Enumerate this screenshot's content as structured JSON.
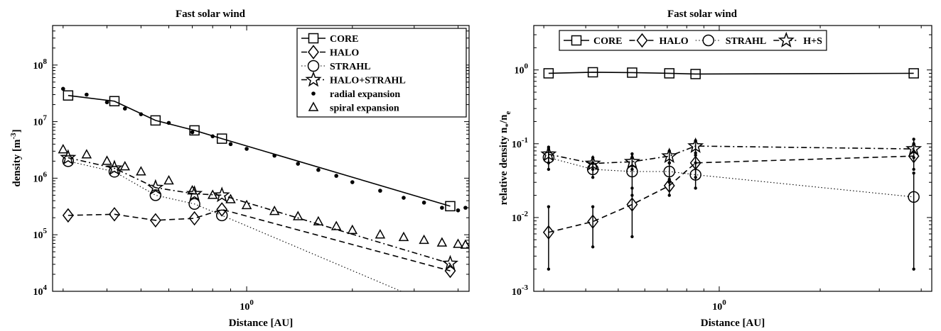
{
  "chart_data": [
    {
      "type": "line",
      "title": "Fast solar wind",
      "xlabel": "Distance [AU]",
      "ylabel_main": "density [m",
      "ylabel_sup": "-3",
      "ylabel_end": "]",
      "x_scale": "log",
      "y_scale": "log",
      "xlim": [
        0.28,
        4.3
      ],
      "ylim": [
        10000,
        500000000
      ],
      "x_tick_labels": [
        {
          "value": 1,
          "base": "10",
          "exp": "0"
        }
      ],
      "y_tick_labels": [
        {
          "value": 10000,
          "base": "10",
          "exp": "4"
        },
        {
          "value": 100000,
          "base": "10",
          "exp": "5"
        },
        {
          "value": 1000000,
          "base": "10",
          "exp": "6"
        },
        {
          "value": 10000000,
          "base": "10",
          "exp": "7"
        },
        {
          "value": 100000000,
          "base": "10",
          "exp": "8"
        }
      ],
      "legend_position": "top-right",
      "series": [
        {
          "name": "CORE",
          "style": "solid",
          "marker": "square",
          "x": [
            0.31,
            0.42,
            0.55,
            0.71,
            0.85,
            3.8
          ],
          "y": [
            29000000,
            23000000,
            10500000,
            7000000,
            5000000,
            320000
          ]
        },
        {
          "name": "HALO",
          "style": "dashed",
          "marker": "diamond",
          "x": [
            0.31,
            0.42,
            0.55,
            0.71,
            0.85,
            3.8
          ],
          "y": [
            220000,
            230000,
            180000,
            195000,
            280000,
            23000
          ]
        },
        {
          "name": "STRAHL",
          "style": "dotted",
          "marker": "circle",
          "x": [
            0.31,
            0.42,
            0.55,
            0.71,
            0.85,
            3.0
          ],
          "y": [
            2000000,
            1300000,
            500000,
            350000,
            220000,
            8000
          ]
        },
        {
          "name": "HALO+STRAHL",
          "style": "dashdot",
          "marker": "star",
          "x": [
            0.31,
            0.42,
            0.55,
            0.71,
            0.85,
            3.8
          ],
          "y": [
            2300000,
            1500000,
            680000,
            530000,
            500000,
            31000
          ]
        },
        {
          "name": "radial expansion",
          "style": "none",
          "marker": "dot",
          "x": [
            0.3,
            0.35,
            0.4,
            0.45,
            0.5,
            0.6,
            0.7,
            0.8,
            0.9,
            1.0,
            1.2,
            1.4,
            1.6,
            1.8,
            2.0,
            2.4,
            2.8,
            3.2,
            3.6,
            4.0,
            4.2
          ],
          "y": [
            38000000,
            30000000,
            22000000,
            17000000,
            13500000,
            9500000,
            6500000,
            5500000,
            4000000,
            3300000,
            2500000,
            1800000,
            1400000,
            1100000,
            850000,
            600000,
            450000,
            370000,
            300000,
            270000,
            300000
          ]
        },
        {
          "name": "spiral expansion",
          "style": "none",
          "marker": "triangle",
          "x": [
            0.3,
            0.35,
            0.4,
            0.45,
            0.5,
            0.6,
            0.7,
            0.8,
            0.9,
            1.0,
            1.2,
            1.4,
            1.6,
            1.8,
            2.0,
            2.4,
            2.8,
            3.2,
            3.6,
            4.0,
            4.2
          ],
          "y": [
            3200000,
            2600000,
            2000000,
            1600000,
            1300000,
            900000,
            600000,
            500000,
            420000,
            330000,
            260000,
            210000,
            170000,
            140000,
            120000,
            100000,
            90000,
            80000,
            72000,
            68000,
            66000
          ]
        }
      ]
    },
    {
      "type": "line",
      "title": "Fast solar wind",
      "xlabel": "Distance [AU]",
      "ylabel_main": "relative density n",
      "ylabel_sub1": "*",
      "ylabel_mid": "/n",
      "ylabel_sub2": "e",
      "x_scale": "log",
      "y_scale": "log",
      "xlim": [
        0.28,
        4.3
      ],
      "ylim": [
        0.001,
        4
      ],
      "x_tick_labels": [
        {
          "value": 1,
          "base": "10",
          "exp": "0"
        }
      ],
      "y_tick_labels": [
        {
          "value": 0.001,
          "base": "10",
          "exp": "-3"
        },
        {
          "value": 0.01,
          "base": "10",
          "exp": "-2"
        },
        {
          "value": 0.1,
          "base": "10",
          "exp": "-1"
        },
        {
          "value": 1,
          "base": "10",
          "exp": "0"
        }
      ],
      "legend_position": "top",
      "series": [
        {
          "name": "CORE",
          "style": "solid",
          "marker": "square",
          "x": [
            0.31,
            0.42,
            0.55,
            0.71,
            0.85,
            3.8
          ],
          "y": [
            0.9,
            0.93,
            0.92,
            0.9,
            0.88,
            0.9
          ]
        },
        {
          "name": "HALO",
          "style": "dashed",
          "marker": "diamond",
          "x": [
            0.31,
            0.42,
            0.55,
            0.71,
            0.85,
            3.8
          ],
          "y": [
            0.0063,
            0.0088,
            0.015,
            0.027,
            0.055,
            0.068
          ],
          "yerr_low": [
            0.002,
            0.004,
            0.0055,
            0.02,
            0.035,
            0.045
          ],
          "yerr_high": [
            0.014,
            0.014,
            0.025,
            0.033,
            0.075,
            0.1
          ]
        },
        {
          "name": "STRAHL",
          "style": "dotted",
          "marker": "circle",
          "x": [
            0.31,
            0.42,
            0.55,
            0.71,
            0.85,
            3.8
          ],
          "y": [
            0.065,
            0.045,
            0.042,
            0.042,
            0.038,
            0.019
          ],
          "yerr_low": [
            0.045,
            0.035,
            0.02,
            0.03,
            0.025,
            0.002
          ],
          "yerr_high": [
            0.085,
            0.055,
            0.065,
            0.055,
            0.055,
            0.04
          ]
        },
        {
          "name": "H+S",
          "style": "dashdot",
          "marker": "star",
          "x": [
            0.31,
            0.42,
            0.55,
            0.71,
            0.85,
            3.8
          ],
          "y": [
            0.072,
            0.054,
            0.057,
            0.068,
            0.093,
            0.085
          ],
          "yerr_low": [
            0.055,
            0.045,
            0.045,
            0.055,
            0.07,
            0.065
          ],
          "yerr_high": [
            0.09,
            0.065,
            0.073,
            0.08,
            0.11,
            0.115
          ]
        }
      ]
    }
  ]
}
